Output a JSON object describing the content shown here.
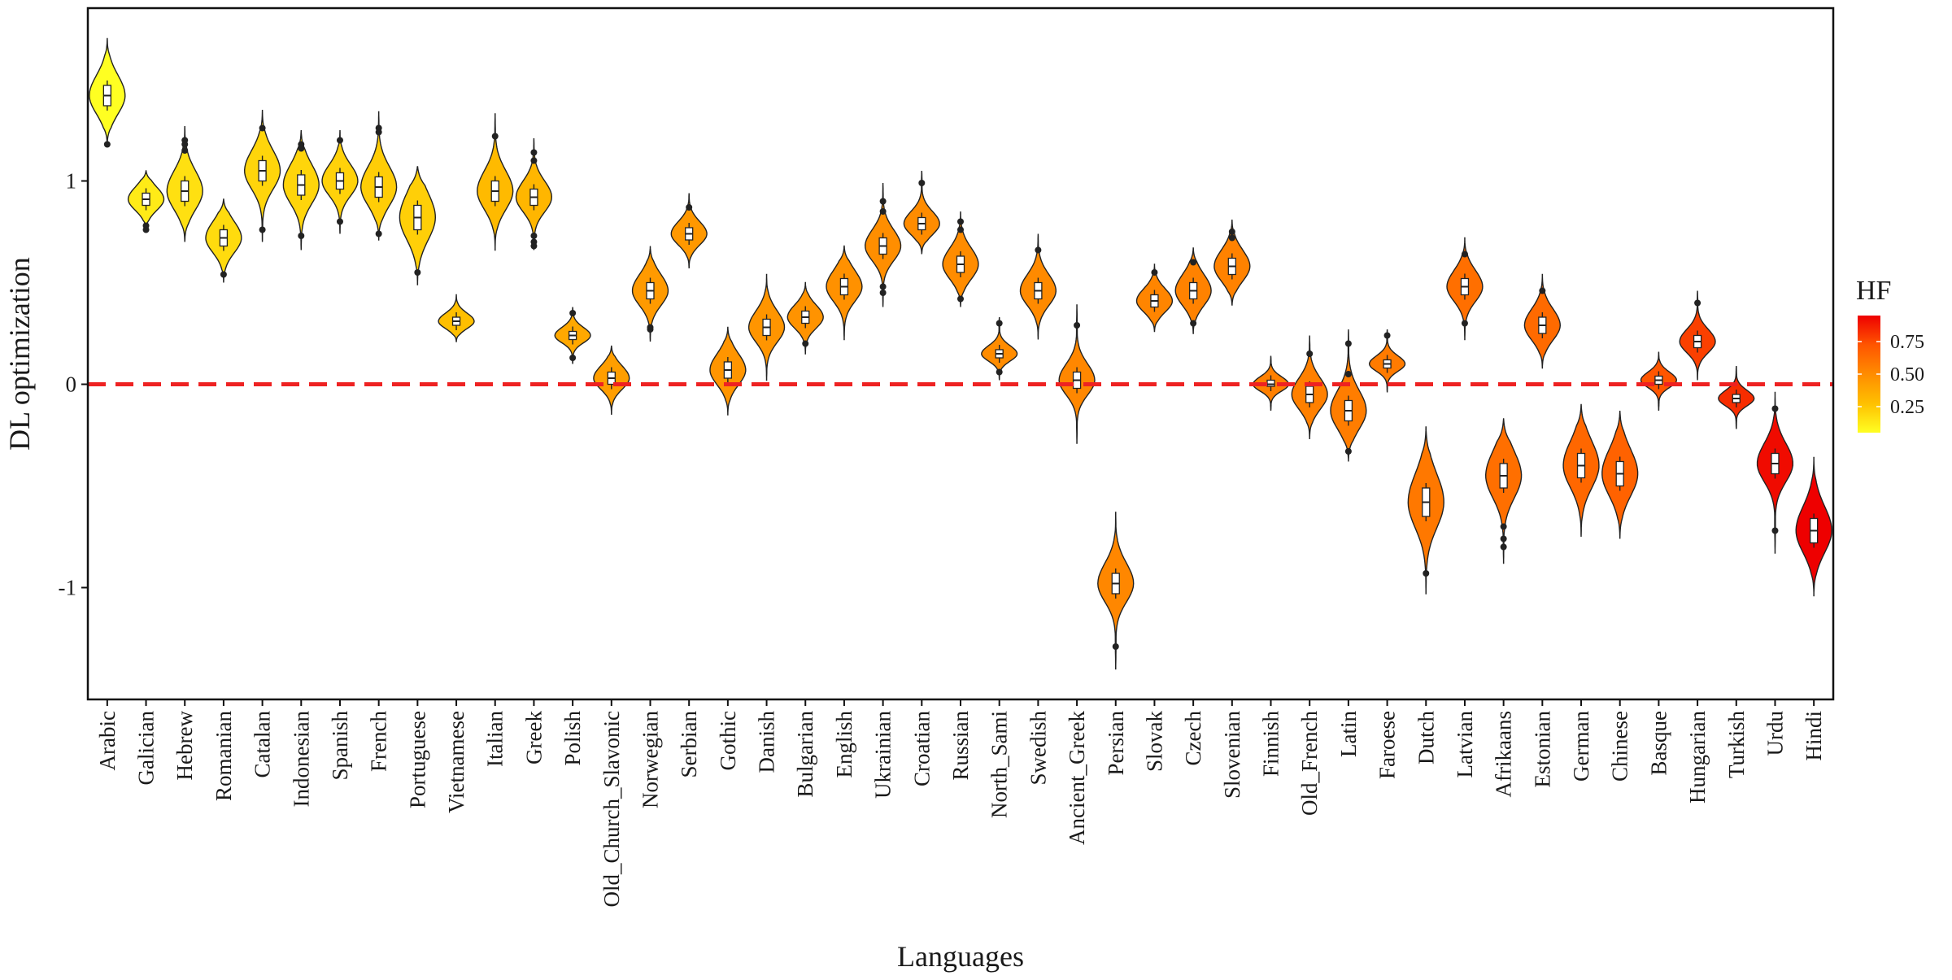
{
  "chart_data": {
    "type": "violin",
    "title": "",
    "xlabel": "Languages",
    "ylabel": "DL optimization",
    "ylim": [
      -1.55,
      1.85
    ],
    "yticks": [
      -1,
      0,
      1
    ],
    "yticklabels": [
      "-1",
      "0",
      "1"
    ],
    "reference_line": {
      "y": 0,
      "color": "#ee2222",
      "style": "dashed"
    },
    "grid": false,
    "legend": {
      "title": "HF",
      "placement": "right",
      "type": "colorbar",
      "ticks": [
        0.25,
        0.5,
        0.75
      ],
      "ticklabels": [
        "0.25",
        "0.50",
        "0.75"
      ],
      "range": [
        0.05,
        0.95
      ],
      "colors": [
        "#ffff22",
        "#ffc000",
        "#ff8c00",
        "#ff5500",
        "#ee0000"
      ]
    },
    "categories": [
      "Arabic",
      "Galician",
      "Hebrew",
      "Romanian",
      "Catalan",
      "Indonesian",
      "Spanish",
      "French",
      "Portuguese",
      "Vietnamese",
      "Italian",
      "Greek",
      "Polish",
      "Old_Church_Slavonic",
      "Norwegian",
      "Serbian",
      "Gothic",
      "Danish",
      "Bulgarian",
      "English",
      "Ukrainian",
      "Croatian",
      "Russian",
      "North_Sami",
      "Swedish",
      "Ancient_Greek",
      "Persian",
      "Slovak",
      "Czech",
      "Slovenian",
      "Finnish",
      "Old_French",
      "Latin",
      "Faroese",
      "Dutch",
      "Latvian",
      "Afrikaans",
      "Estonian",
      "German",
      "Chinese",
      "Basque",
      "Hungarian",
      "Turkish",
      "Urdu",
      "Hindi"
    ],
    "median": [
      1.42,
      0.91,
      0.95,
      0.72,
      1.05,
      0.98,
      1.0,
      0.97,
      0.82,
      0.31,
      0.95,
      0.92,
      0.24,
      0.03,
      0.46,
      0.74,
      0.07,
      0.28,
      0.33,
      0.48,
      0.68,
      0.79,
      0.59,
      0.15,
      0.46,
      0.02,
      -0.98,
      0.41,
      0.46,
      0.58,
      0.0,
      -0.05,
      -0.13,
      0.1,
      -0.58,
      0.48,
      -0.45,
      0.29,
      -0.4,
      -0.44,
      0.02,
      0.21,
      -0.07,
      -0.39,
      -0.72
    ],
    "min": [
      1.18,
      0.76,
      0.7,
      0.5,
      0.7,
      0.66,
      0.74,
      0.71,
      0.49,
      0.21,
      0.66,
      0.66,
      0.1,
      -0.15,
      0.21,
      0.57,
      -0.15,
      0.02,
      0.15,
      0.22,
      0.38,
      0.64,
      0.38,
      0.02,
      0.22,
      -0.29,
      -1.4,
      0.26,
      0.25,
      0.39,
      -0.13,
      -0.27,
      -0.38,
      -0.04,
      -1.03,
      0.22,
      -0.88,
      0.08,
      -0.75,
      -0.76,
      -0.13,
      0.02,
      -0.22,
      -0.83,
      -1.04
    ],
    "max": [
      1.7,
      1.05,
      1.27,
      0.91,
      1.35,
      1.25,
      1.25,
      1.34,
      1.07,
      0.44,
      1.33,
      1.21,
      0.38,
      0.19,
      0.68,
      0.94,
      0.28,
      0.54,
      0.5,
      0.68,
      0.99,
      1.05,
      0.85,
      0.33,
      0.74,
      0.39,
      -0.63,
      0.59,
      0.67,
      0.81,
      0.14,
      0.24,
      0.27,
      0.27,
      -0.21,
      0.72,
      -0.17,
      0.54,
      -0.1,
      -0.13,
      0.16,
      0.46,
      0.09,
      -0.04,
      -0.36
    ],
    "q1": [
      1.37,
      0.88,
      0.9,
      0.68,
      1.0,
      0.93,
      0.96,
      0.92,
      0.76,
      0.29,
      0.9,
      0.88,
      0.22,
      0.0,
      0.42,
      0.71,
      0.03,
      0.24,
      0.3,
      0.44,
      0.64,
      0.76,
      0.55,
      0.13,
      0.42,
      -0.02,
      -1.03,
      0.38,
      0.42,
      0.54,
      -0.01,
      -0.09,
      -0.18,
      0.08,
      -0.65,
      0.44,
      -0.51,
      0.25,
      -0.46,
      -0.5,
      0.0,
      0.18,
      -0.09,
      -0.44,
      -0.78
    ],
    "q3": [
      1.47,
      0.94,
      1.0,
      0.76,
      1.1,
      1.03,
      1.04,
      1.02,
      0.88,
      0.33,
      1.0,
      0.96,
      0.26,
      0.06,
      0.5,
      0.77,
      0.11,
      0.32,
      0.36,
      0.52,
      0.72,
      0.82,
      0.63,
      0.17,
      0.5,
      0.06,
      -0.93,
      0.44,
      0.5,
      0.62,
      0.02,
      -0.01,
      -0.08,
      0.12,
      -0.51,
      0.52,
      -0.39,
      0.33,
      -0.34,
      -0.38,
      0.04,
      0.24,
      -0.05,
      -0.34,
      -0.66
    ],
    "hf": [
      0.05,
      0.12,
      0.16,
      0.18,
      0.2,
      0.2,
      0.21,
      0.23,
      0.22,
      0.28,
      0.3,
      0.32,
      0.38,
      0.42,
      0.44,
      0.45,
      0.46,
      0.46,
      0.47,
      0.48,
      0.49,
      0.5,
      0.5,
      0.5,
      0.51,
      0.52,
      0.52,
      0.53,
      0.54,
      0.54,
      0.55,
      0.55,
      0.56,
      0.57,
      0.58,
      0.62,
      0.62,
      0.64,
      0.65,
      0.67,
      0.72,
      0.78,
      0.83,
      0.92,
      0.95
    ],
    "outliers": [
      [
        1.18
      ],
      [
        0.76,
        0.78
      ],
      [
        1.15,
        1.18,
        1.2
      ],
      [
        0.54
      ],
      [
        0.76,
        1.26
      ],
      [
        0.73,
        1.16,
        1.18
      ],
      [
        0.8,
        1.2
      ],
      [
        0.74,
        1.24,
        1.26
      ],
      [
        0.55
      ],
      [],
      [
        1.22
      ],
      [
        0.68,
        0.7,
        0.73,
        1.1,
        1.14
      ],
      [
        0.13,
        0.35
      ],
      [],
      [
        0.27,
        0.28
      ],
      [
        0.87
      ],
      [],
      [],
      [
        0.2
      ],
      [],
      [
        0.45,
        0.48,
        0.85,
        0.9
      ],
      [
        0.99
      ],
      [
        0.42,
        0.76,
        0.8
      ],
      [
        0.06,
        0.3
      ],
      [
        0.66
      ],
      [
        0.29
      ],
      [
        -1.29
      ],
      [
        0.55
      ],
      [
        0.3,
        0.6
      ],
      [
        0.72,
        0.75
      ],
      [],
      [
        0.15
      ],
      [
        -0.33,
        0.05,
        0.2
      ],
      [
        0.24
      ],
      [
        -0.93
      ],
      [
        0.3,
        0.64
      ],
      [
        -0.7,
        -0.76,
        -0.8
      ],
      [
        0.46
      ],
      [],
      [],
      [],
      [
        0.4
      ],
      [],
      [
        -0.12,
        -0.72
      ],
      []
    ]
  }
}
